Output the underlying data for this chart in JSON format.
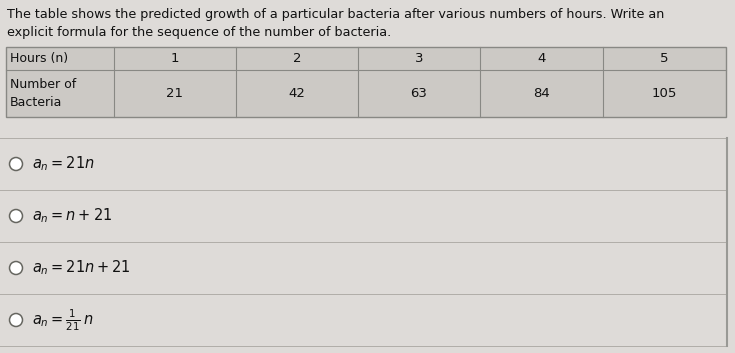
{
  "title_line1": "The table shows the predicted growth of a particular bacteria after various numbers of hours. Write an",
  "title_line2": "explicit formula for the sequence of the number of bacteria.",
  "table_headers": [
    "Hours (n)",
    "1",
    "2",
    "3",
    "4",
    "5"
  ],
  "table_row1_label": "Number of\nBacteria",
  "table_row1_values": [
    "21",
    "42",
    "63",
    "84",
    "105"
  ],
  "options_display": [
    "$a_n = 21n$",
    "$a_n = n + 21$",
    "$a_n = 21n + 21$",
    "$a_n = \\frac{1}{21}\\,n$"
  ],
  "page_bg": "#dedbd8",
  "table_cell_bg": "#ccc9c5",
  "table_header_bg": "#ccc9c5",
  "border_color": "#888884",
  "text_color": "#111111",
  "divider_color": "#b0ada8",
  "right_border_color": "#999995"
}
